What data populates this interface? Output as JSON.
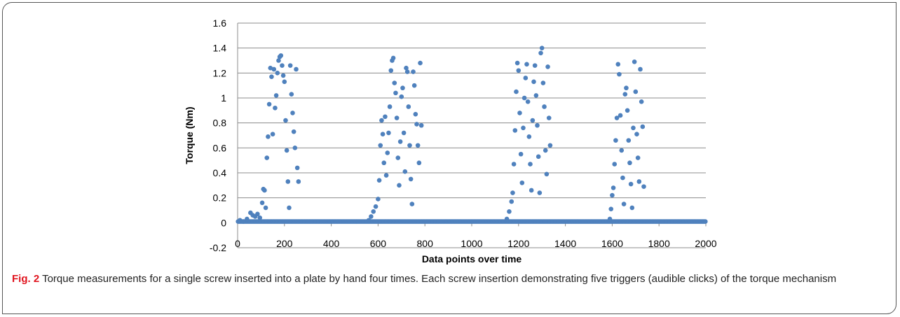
{
  "caption": {
    "label": "Fig. 2",
    "text": " Torque measurements for a single screw inserted into a plate by hand four times. Each screw insertion demonstrating five triggers (audible clicks) of the torque mechanism"
  },
  "chart_data": {
    "type": "scatter",
    "title": "",
    "xlabel": "Data points over time",
    "ylabel": "Torque (Nm)",
    "xlim": [
      0,
      2000
    ],
    "ylim": [
      -0.2,
      1.6
    ],
    "xticks": [
      "0",
      "200",
      "400",
      "600",
      "800",
      "1000",
      "1200",
      "1400",
      "1600",
      "1800",
      "2000"
    ],
    "yticks": [
      "-0.2",
      "0",
      "0.2",
      "0.4",
      "0.6",
      "0.8",
      "1",
      "1.2",
      "1.4",
      "1.6"
    ],
    "grid": "horizontal",
    "legend": "none",
    "marker_color": "#4f81bd",
    "baseline_value": 0.01,
    "bursts": [
      {
        "x_start": 100,
        "x_end": 265,
        "peak": 1.34
      },
      {
        "x_start": 590,
        "x_end": 790,
        "peak": 1.32
      },
      {
        "x_start": 1170,
        "x_end": 1340,
        "peak": 1.4
      },
      {
        "x_start": 1600,
        "x_end": 1740,
        "peak": 1.29
      }
    ],
    "series": [
      {
        "values": [
          [
            10,
            0.02
          ],
          [
            25,
            0.01
          ],
          [
            40,
            0.03
          ],
          [
            55,
            0.08
          ],
          [
            65,
            0.06
          ],
          [
            75,
            0.05
          ],
          [
            85,
            0.07
          ],
          [
            95,
            0.04
          ],
          [
            105,
            0.16
          ],
          [
            110,
            0.27
          ],
          [
            115,
            0.26
          ],
          [
            120,
            0.12
          ],
          [
            125,
            0.52
          ],
          [
            130,
            0.69
          ],
          [
            135,
            0.95
          ],
          [
            140,
            1.24
          ],
          [
            145,
            1.17
          ],
          [
            150,
            0.71
          ],
          [
            155,
            1.23
          ],
          [
            160,
            0.92
          ],
          [
            165,
            1.02
          ],
          [
            170,
            1.2
          ],
          [
            175,
            1.3
          ],
          [
            180,
            1.33
          ],
          [
            185,
            1.34
          ],
          [
            190,
            1.26
          ],
          [
            195,
            1.18
          ],
          [
            200,
            1.13
          ],
          [
            205,
            0.82
          ],
          [
            210,
            0.58
          ],
          [
            215,
            0.33
          ],
          [
            220,
            0.12
          ],
          [
            225,
            1.26
          ],
          [
            230,
            1.03
          ],
          [
            235,
            0.88
          ],
          [
            240,
            0.73
          ],
          [
            245,
            0.6
          ],
          [
            250,
            1.23
          ],
          [
            255,
            0.44
          ],
          [
            260,
            0.33
          ],
          [
            560,
            0.02
          ],
          [
            570,
            0.05
          ],
          [
            580,
            0.09
          ],
          [
            590,
            0.13
          ],
          [
            600,
            0.19
          ],
          [
            605,
            0.34
          ],
          [
            610,
            0.62
          ],
          [
            615,
            0.82
          ],
          [
            620,
            0.71
          ],
          [
            625,
            0.48
          ],
          [
            630,
            0.85
          ],
          [
            635,
            0.38
          ],
          [
            640,
            0.56
          ],
          [
            645,
            0.72
          ],
          [
            650,
            0.93
          ],
          [
            655,
            1.22
          ],
          [
            660,
            1.3
          ],
          [
            665,
            1.32
          ],
          [
            670,
            1.12
          ],
          [
            675,
            1.04
          ],
          [
            680,
            0.84
          ],
          [
            685,
            0.52
          ],
          [
            690,
            0.3
          ],
          [
            695,
            0.65
          ],
          [
            700,
            1.01
          ],
          [
            705,
            1.08
          ],
          [
            710,
            0.72
          ],
          [
            715,
            0.41
          ],
          [
            720,
            1.24
          ],
          [
            725,
            1.21
          ],
          [
            730,
            0.93
          ],
          [
            735,
            0.62
          ],
          [
            740,
            0.35
          ],
          [
            745,
            0.15
          ],
          [
            750,
            1.21
          ],
          [
            755,
            1.1
          ],
          [
            760,
            0.87
          ],
          [
            765,
            0.79
          ],
          [
            770,
            0.62
          ],
          [
            775,
            0.48
          ],
          [
            780,
            1.28
          ],
          [
            785,
            0.78
          ],
          [
            1150,
            0.03
          ],
          [
            1160,
            0.09
          ],
          [
            1170,
            0.17
          ],
          [
            1175,
            0.24
          ],
          [
            1180,
            0.47
          ],
          [
            1185,
            0.74
          ],
          [
            1190,
            1.05
          ],
          [
            1195,
            1.28
          ],
          [
            1200,
            1.22
          ],
          [
            1205,
            0.88
          ],
          [
            1210,
            0.55
          ],
          [
            1215,
            0.32
          ],
          [
            1220,
            0.76
          ],
          [
            1225,
            1.0
          ],
          [
            1230,
            1.16
          ],
          [
            1235,
            1.27
          ],
          [
            1240,
            0.97
          ],
          [
            1245,
            0.69
          ],
          [
            1250,
            0.47
          ],
          [
            1255,
            0.26
          ],
          [
            1260,
            0.82
          ],
          [
            1265,
            1.13
          ],
          [
            1270,
            1.26
          ],
          [
            1275,
            1.02
          ],
          [
            1280,
            0.78
          ],
          [
            1285,
            0.53
          ],
          [
            1290,
            0.24
          ],
          [
            1295,
            1.36
          ],
          [
            1300,
            1.4
          ],
          [
            1305,
            1.12
          ],
          [
            1310,
            0.93
          ],
          [
            1315,
            0.58
          ],
          [
            1320,
            0.39
          ],
          [
            1325,
            1.25
          ],
          [
            1330,
            0.84
          ],
          [
            1335,
            0.62
          ],
          [
            1590,
            0.03
          ],
          [
            1595,
            0.11
          ],
          [
            1600,
            0.22
          ],
          [
            1605,
            0.28
          ],
          [
            1610,
            0.47
          ],
          [
            1615,
            0.66
          ],
          [
            1620,
            0.84
          ],
          [
            1625,
            1.27
          ],
          [
            1630,
            1.19
          ],
          [
            1635,
            0.86
          ],
          [
            1640,
            0.58
          ],
          [
            1645,
            0.36
          ],
          [
            1650,
            0.15
          ],
          [
            1655,
            1.03
          ],
          [
            1660,
            1.08
          ],
          [
            1665,
            0.9
          ],
          [
            1670,
            0.66
          ],
          [
            1675,
            0.48
          ],
          [
            1680,
            0.31
          ],
          [
            1685,
            0.12
          ],
          [
            1690,
            0.76
          ],
          [
            1695,
            1.29
          ],
          [
            1700,
            1.05
          ],
          [
            1705,
            0.71
          ],
          [
            1710,
            0.52
          ],
          [
            1715,
            0.33
          ],
          [
            1720,
            1.23
          ],
          [
            1725,
            0.97
          ],
          [
            1730,
            0.77
          ],
          [
            1735,
            0.29
          ]
        ]
      }
    ]
  }
}
